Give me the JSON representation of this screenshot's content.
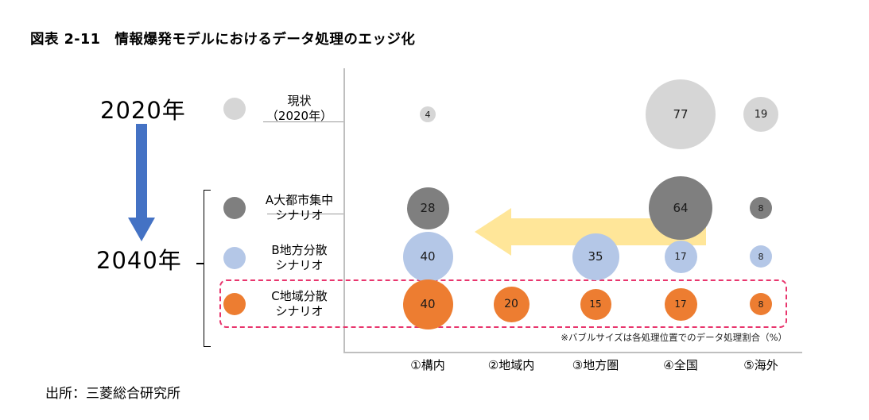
{
  "page": {
    "title": "図表 2-11　情報爆発モデルにおけるデータ処理のエッジ化",
    "source": "出所：三菱総合研究所"
  },
  "timeline": {
    "start_label": "2020年",
    "end_label": "2040年"
  },
  "colors": {
    "timeline_arrow": "#4472c4",
    "shift_arrow": "#ffe699",
    "highlight_box": "#e8356d",
    "axis": "#bfbfbf"
  },
  "chart_data": {
    "type": "scatter",
    "subtype": "bubble",
    "title": "図表 2-11　情報爆発モデルにおけるデータ処理のエッジ化",
    "unit": "%",
    "note": "※バブルサイズは各処理位置でのデータ処理割合（%）",
    "categories": [
      "①構内",
      "②地域内",
      "③地方圏",
      "④全国",
      "⑤海外"
    ],
    "series": [
      {
        "key": "current-2020",
        "name": "現状（2020年）",
        "legend_lines": [
          "現状",
          "（2020年）"
        ],
        "color": "#d6d6d6",
        "values": [
          4,
          null,
          null,
          77,
          19
        ]
      },
      {
        "key": "scenario-a",
        "name": "A大都市集中シナリオ",
        "legend_lines": [
          "A大都市集中",
          "シナリオ"
        ],
        "color": "#7f7f7f",
        "values": [
          28,
          null,
          null,
          64,
          8
        ]
      },
      {
        "key": "scenario-b",
        "name": "B地方分散シナリオ",
        "legend_lines": [
          "B地方分散",
          "シナリオ"
        ],
        "color": "#b4c7e7",
        "values": [
          40,
          null,
          35,
          17,
          8
        ]
      },
      {
        "key": "scenario-c",
        "name": "C地域分散シナリオ",
        "legend_lines": [
          "C地域分散",
          "シナリオ"
        ],
        "color": "#ed7d31",
        "values": [
          40,
          20,
          15,
          17,
          8
        ]
      }
    ],
    "annotations": {
      "timeline": [
        "2020年",
        "2040年"
      ],
      "highlighted_series": "C地域分散シナリオ",
      "shift_arrow_direction": "left"
    },
    "legend_position": "left",
    "grid": false
  }
}
